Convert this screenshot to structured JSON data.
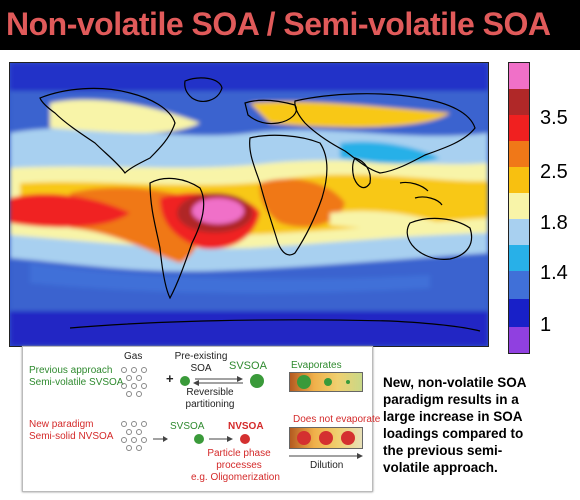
{
  "title": "Non-volatile SOA / Semi-volatile SOA",
  "colorbar": {
    "colors": [
      "#f070c8",
      "#b02828",
      "#f02020",
      "#f07818",
      "#f8c010",
      "#f8f4a8",
      "#a8d0f0",
      "#28b0e8",
      "#4070d8",
      "#1820c8",
      "#9040e0"
    ],
    "labels": [
      "3.5",
      "2.5",
      "1.8",
      "1.4",
      "1"
    ]
  },
  "inset": {
    "gas_label": "Gas",
    "preexisting_label": "Pre-existing SOA",
    "previous_title": "Previous approach",
    "previous_subtitle": "Semi-volatile SVSOA",
    "svsoa_label": "SVSOA",
    "reversible_label": "Reversible partitioning",
    "evaporates_label": "Evaporates",
    "new_title": "New paradigm",
    "new_subtitle": "Semi-solid NVSOA",
    "svsoa_label2": "SVSOA",
    "nvsoa_label": "NVSOA",
    "no_evap_label": "Does not evaporate",
    "particle_label": "Particle phase processes",
    "oligomer_label": "e.g. Oligomerization",
    "dilution_label": "Dilution",
    "plus": "+"
  },
  "caption_lines": [
    "New, non-volatile SOA",
    "paradigm results in a",
    "large increase in SOA",
    "loadings compared to",
    "the previous semi-",
    "volatile approach."
  ]
}
